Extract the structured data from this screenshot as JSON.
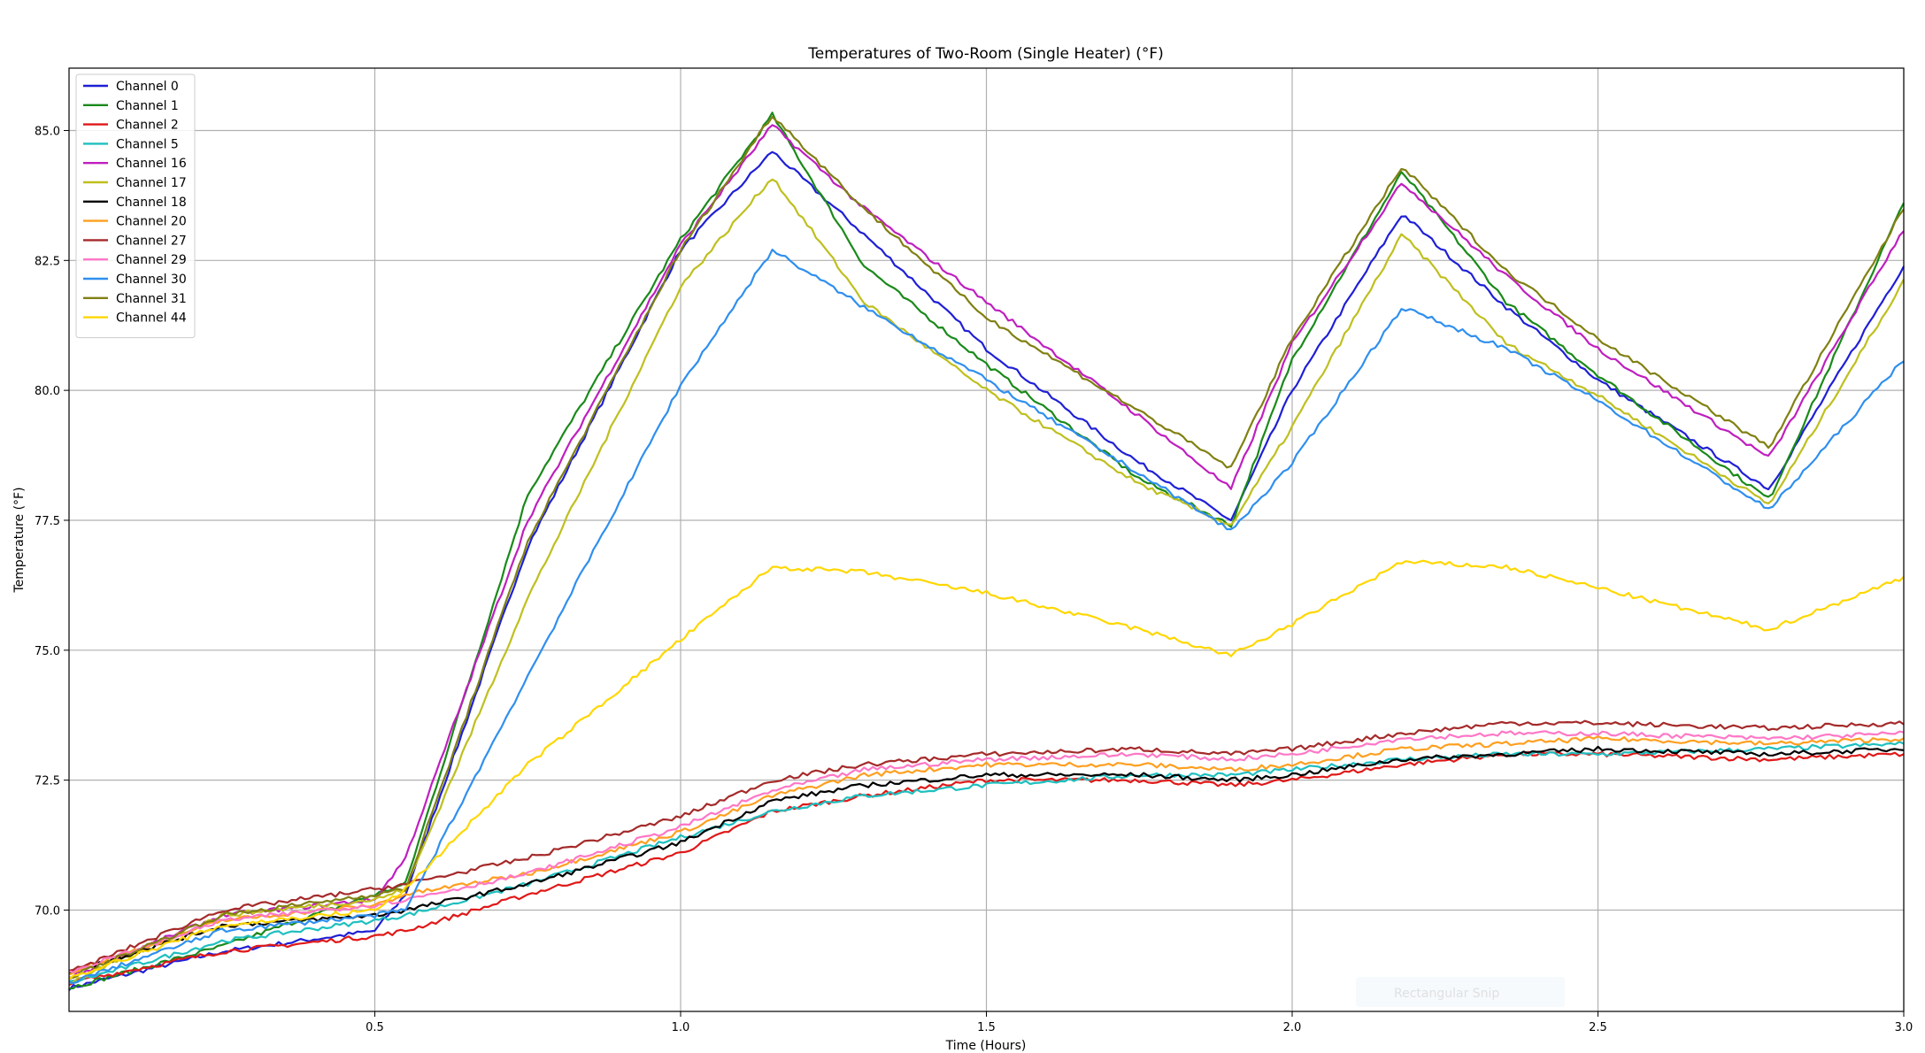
{
  "chart_data": {
    "type": "line",
    "title": "Temperatures of Two-Room (Single Heater) (°F)",
    "xlabel": "Time (Hours)",
    "ylabel": "Temperature (°F)",
    "xlim": [
      0.0,
      3.0
    ],
    "ylim": [
      68.05,
      86.2
    ],
    "xticks": [
      0.5,
      1.0,
      1.5,
      2.0,
      2.5,
      3.0
    ],
    "xtick_labels": [
      "0.5",
      "1.0",
      "1.5",
      "2.0",
      "2.5",
      "3.0"
    ],
    "yticks": [
      70.0,
      72.5,
      75.0,
      77.5,
      80.0,
      82.5,
      85.0
    ],
    "ytick_labels": [
      "70.0",
      "72.5",
      "75.0",
      "77.5",
      "80.0",
      "82.5",
      "85.0"
    ],
    "grid": true,
    "legend_position": "upper-left",
    "x": [
      0.0,
      0.25,
      0.5,
      0.55,
      0.75,
      1.0,
      1.15,
      1.3,
      1.5,
      1.75,
      1.9,
      2.0,
      2.18,
      2.35,
      2.5,
      2.78,
      3.0
    ],
    "series": [
      {
        "name": "Channel 0",
        "color": "#1f1fd6",
        "values": [
          68.5,
          69.2,
          69.6,
          70.3,
          77.0,
          82.7,
          84.6,
          83.0,
          80.8,
          78.6,
          77.5,
          80.0,
          83.4,
          81.6,
          80.2,
          78.1,
          82.4
        ]
      },
      {
        "name": "Channel 1",
        "color": "#1a8a1a",
        "values": [
          68.5,
          69.3,
          70.3,
          70.5,
          78.0,
          82.9,
          85.3,
          82.4,
          80.5,
          78.3,
          77.4,
          80.6,
          84.2,
          81.7,
          80.3,
          77.9,
          83.6
        ]
      },
      {
        "name": "Channel 2",
        "color": "#e01818",
        "values": [
          68.6,
          69.2,
          69.5,
          69.6,
          70.3,
          71.1,
          71.9,
          72.2,
          72.5,
          72.5,
          72.4,
          72.5,
          72.8,
          73.0,
          73.0,
          72.9,
          73.0
        ]
      },
      {
        "name": "Channel 5",
        "color": "#1fbfbf",
        "values": [
          68.6,
          69.4,
          69.8,
          69.9,
          70.5,
          71.4,
          71.9,
          72.2,
          72.4,
          72.6,
          72.6,
          72.7,
          72.9,
          73.0,
          73.0,
          73.1,
          73.2
        ]
      },
      {
        "name": "Channel 16",
        "color": "#bf1fbf",
        "values": [
          68.7,
          69.9,
          70.2,
          71.0,
          77.5,
          82.8,
          85.1,
          83.5,
          81.7,
          79.5,
          78.1,
          80.9,
          84.0,
          82.2,
          80.8,
          78.7,
          83.1
        ]
      },
      {
        "name": "Channel 17",
        "color": "#bfbf1f",
        "values": [
          68.6,
          69.9,
          70.2,
          70.4,
          76.0,
          82.0,
          84.1,
          81.7,
          80.0,
          78.2,
          77.4,
          79.3,
          83.0,
          80.9,
          79.9,
          77.8,
          82.1
        ]
      },
      {
        "name": "Channel 18",
        "color": "#000000",
        "values": [
          68.8,
          69.7,
          69.9,
          70.0,
          70.5,
          71.3,
          72.1,
          72.4,
          72.6,
          72.6,
          72.5,
          72.6,
          72.9,
          73.0,
          73.1,
          73.0,
          73.1
        ]
      },
      {
        "name": "Channel 20",
        "color": "#ff9f1f",
        "values": [
          68.8,
          69.8,
          70.1,
          70.3,
          70.7,
          71.5,
          72.2,
          72.6,
          72.8,
          72.8,
          72.7,
          72.8,
          73.1,
          73.2,
          73.3,
          73.2,
          73.3
        ]
      },
      {
        "name": "Channel 27",
        "color": "#a52a2a",
        "values": [
          68.8,
          70.0,
          70.4,
          70.5,
          71.0,
          71.8,
          72.5,
          72.8,
          73.0,
          73.1,
          73.0,
          73.1,
          73.4,
          73.6,
          73.6,
          73.5,
          73.6
        ]
      },
      {
        "name": "Channel 29",
        "color": "#ff77c6",
        "values": [
          68.8,
          69.8,
          70.1,
          70.2,
          70.7,
          71.6,
          72.3,
          72.7,
          72.9,
          73.0,
          72.9,
          73.0,
          73.3,
          73.4,
          73.4,
          73.3,
          73.4
        ]
      },
      {
        "name": "Channel 30",
        "color": "#2f8fef",
        "values": [
          68.6,
          69.6,
          69.9,
          70.0,
          74.5,
          80.1,
          82.7,
          81.6,
          80.2,
          78.4,
          77.3,
          78.6,
          81.6,
          80.8,
          79.8,
          77.7,
          80.6
        ]
      },
      {
        "name": "Channel 31",
        "color": "#808012",
        "values": [
          68.7,
          69.9,
          70.3,
          70.4,
          77.1,
          82.7,
          85.3,
          83.5,
          81.4,
          79.6,
          78.5,
          81.0,
          84.3,
          82.3,
          81.0,
          78.9,
          83.5
        ]
      },
      {
        "name": "Channel 44",
        "color": "#ffd700",
        "values": [
          68.7,
          69.7,
          70.0,
          70.4,
          72.8,
          75.2,
          76.6,
          76.5,
          76.1,
          75.4,
          74.9,
          75.5,
          76.7,
          76.6,
          76.2,
          75.4,
          76.4
        ]
      }
    ]
  },
  "watermark": "Rectangular Snip"
}
